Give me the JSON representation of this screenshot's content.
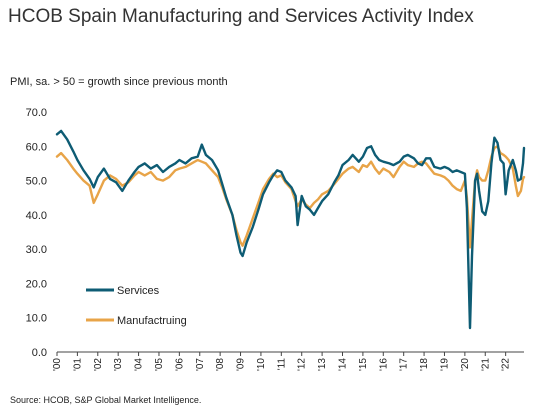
{
  "chart_data": {
    "type": "line",
    "title": "HCOB Spain Manufacturing and Services Activity Index",
    "subtitle": "PMI, sa. > 50 = growth since previous month",
    "source": "Source: HCOB, S&P Global Market Intelligence.",
    "ylim": [
      0,
      70
    ],
    "yticks": [
      "0.0",
      "10.0",
      "20.0",
      "30.0",
      "40.0",
      "50.0",
      "60.0",
      "70.0"
    ],
    "xlim": [
      2000,
      2022.9
    ],
    "xticks": [
      "'00",
      "'01",
      "'02",
      "'03",
      "'04",
      "'05",
      "'06",
      "'07",
      "'08",
      "'09",
      "'10",
      "'11",
      "'12",
      "'13",
      "'14",
      "'15",
      "'16",
      "'17",
      "'18",
      "'19",
      "'20",
      "'21",
      "'22"
    ],
    "legend_position": "bottom-left",
    "series": [
      {
        "name": "Services",
        "color": "#0e5c74",
        "points": [
          [
            2000.0,
            63.5
          ],
          [
            2000.2,
            64.5
          ],
          [
            2000.5,
            62.0
          ],
          [
            2000.8,
            58.5
          ],
          [
            2001.0,
            56.0
          ],
          [
            2001.3,
            53.0
          ],
          [
            2001.6,
            50.5
          ],
          [
            2001.8,
            48.0
          ],
          [
            2002.0,
            51.0
          ],
          [
            2002.3,
            53.5
          ],
          [
            2002.6,
            50.5
          ],
          [
            2002.9,
            49.5
          ],
          [
            2003.2,
            47.0
          ],
          [
            2003.5,
            50.0
          ],
          [
            2003.8,
            52.5
          ],
          [
            2004.0,
            54.0
          ],
          [
            2004.3,
            55.0
          ],
          [
            2004.6,
            53.5
          ],
          [
            2004.9,
            54.5
          ],
          [
            2005.2,
            52.5
          ],
          [
            2005.5,
            54.0
          ],
          [
            2005.8,
            55.0
          ],
          [
            2006.0,
            56.0
          ],
          [
            2006.3,
            55.0
          ],
          [
            2006.6,
            56.5
          ],
          [
            2006.9,
            57.0
          ],
          [
            2007.1,
            60.5
          ],
          [
            2007.3,
            57.5
          ],
          [
            2007.6,
            56.0
          ],
          [
            2007.9,
            53.0
          ],
          [
            2008.1,
            49.0
          ],
          [
            2008.3,
            45.0
          ],
          [
            2008.6,
            40.0
          ],
          [
            2008.8,
            34.0
          ],
          [
            2009.0,
            29.0
          ],
          [
            2009.1,
            28.0
          ],
          [
            2009.3,
            32.0
          ],
          [
            2009.6,
            36.5
          ],
          [
            2009.9,
            42.0
          ],
          [
            2010.1,
            46.0
          ],
          [
            2010.4,
            49.5
          ],
          [
            2010.6,
            51.5
          ],
          [
            2010.8,
            53.0
          ],
          [
            2011.0,
            52.5
          ],
          [
            2011.2,
            50.0
          ],
          [
            2011.5,
            48.0
          ],
          [
            2011.7,
            45.5
          ],
          [
            2011.8,
            37.0
          ],
          [
            2012.0,
            45.5
          ],
          [
            2012.2,
            42.5
          ],
          [
            2012.4,
            41.5
          ],
          [
            2012.6,
            40.0
          ],
          [
            2012.8,
            42.0
          ],
          [
            2013.0,
            44.0
          ],
          [
            2013.3,
            46.0
          ],
          [
            2013.6,
            49.5
          ],
          [
            2013.8,
            51.5
          ],
          [
            2014.0,
            54.5
          ],
          [
            2014.3,
            56.0
          ],
          [
            2014.5,
            57.5
          ],
          [
            2014.8,
            55.5
          ],
          [
            2015.0,
            57.0
          ],
          [
            2015.2,
            59.5
          ],
          [
            2015.4,
            60.0
          ],
          [
            2015.6,
            57.5
          ],
          [
            2015.8,
            56.0
          ],
          [
            2016.0,
            55.5
          ],
          [
            2016.3,
            55.0
          ],
          [
            2016.5,
            54.5
          ],
          [
            2016.8,
            55.5
          ],
          [
            2017.0,
            57.0
          ],
          [
            2017.2,
            57.5
          ],
          [
            2017.5,
            56.5
          ],
          [
            2017.7,
            55.0
          ],
          [
            2017.9,
            54.5
          ],
          [
            2018.1,
            56.5
          ],
          [
            2018.3,
            56.5
          ],
          [
            2018.5,
            54.0
          ],
          [
            2018.8,
            53.5
          ],
          [
            2019.0,
            54.0
          ],
          [
            2019.2,
            53.5
          ],
          [
            2019.4,
            52.5
          ],
          [
            2019.6,
            53.0
          ],
          [
            2019.8,
            52.5
          ],
          [
            2020.0,
            52.0
          ],
          [
            2020.1,
            42.0
          ],
          [
            2020.25,
            7.0
          ],
          [
            2020.35,
            28.0
          ],
          [
            2020.5,
            50.0
          ],
          [
            2020.6,
            52.0
          ],
          [
            2020.7,
            47.0
          ],
          [
            2020.85,
            41.0
          ],
          [
            2021.0,
            40.0
          ],
          [
            2021.15,
            44.0
          ],
          [
            2021.3,
            55.0
          ],
          [
            2021.45,
            62.5
          ],
          [
            2021.6,
            61.0
          ],
          [
            2021.75,
            56.0
          ],
          [
            2021.9,
            55.0
          ],
          [
            2022.0,
            46.0
          ],
          [
            2022.15,
            53.0
          ],
          [
            2022.35,
            56.0
          ],
          [
            2022.5,
            53.0
          ],
          [
            2022.6,
            50.0
          ],
          [
            2022.75,
            50.5
          ],
          [
            2022.85,
            55.0
          ],
          [
            2022.9,
            59.5
          ]
        ]
      },
      {
        "name": "Manufactruing",
        "color": "#e8a448",
        "points": [
          [
            2000.0,
            57.0
          ],
          [
            2000.2,
            58.0
          ],
          [
            2000.5,
            56.0
          ],
          [
            2000.8,
            53.5
          ],
          [
            2001.0,
            52.0
          ],
          [
            2001.3,
            50.0
          ],
          [
            2001.6,
            48.5
          ],
          [
            2001.8,
            43.5
          ],
          [
            2002.0,
            46.0
          ],
          [
            2002.3,
            50.0
          ],
          [
            2002.6,
            51.5
          ],
          [
            2002.9,
            50.5
          ],
          [
            2003.2,
            48.5
          ],
          [
            2003.5,
            49.5
          ],
          [
            2003.8,
            51.5
          ],
          [
            2004.0,
            52.5
          ],
          [
            2004.3,
            51.5
          ],
          [
            2004.6,
            52.5
          ],
          [
            2004.9,
            50.5
          ],
          [
            2005.2,
            50.0
          ],
          [
            2005.5,
            51.0
          ],
          [
            2005.8,
            53.0
          ],
          [
            2006.0,
            53.5
          ],
          [
            2006.3,
            54.0
          ],
          [
            2006.6,
            55.0
          ],
          [
            2006.9,
            56.0
          ],
          [
            2007.1,
            55.5
          ],
          [
            2007.3,
            55.0
          ],
          [
            2007.6,
            53.0
          ],
          [
            2007.9,
            51.0
          ],
          [
            2008.1,
            48.0
          ],
          [
            2008.3,
            44.5
          ],
          [
            2008.6,
            40.0
          ],
          [
            2008.8,
            35.5
          ],
          [
            2009.0,
            32.0
          ],
          [
            2009.1,
            31.0
          ],
          [
            2009.3,
            34.0
          ],
          [
            2009.6,
            39.0
          ],
          [
            2009.9,
            44.0
          ],
          [
            2010.1,
            47.5
          ],
          [
            2010.4,
            50.5
          ],
          [
            2010.6,
            52.0
          ],
          [
            2010.8,
            51.0
          ],
          [
            2011.0,
            51.5
          ],
          [
            2011.2,
            49.5
          ],
          [
            2011.5,
            47.5
          ],
          [
            2011.7,
            44.0
          ],
          [
            2011.8,
            42.5
          ],
          [
            2012.0,
            44.5
          ],
          [
            2012.2,
            43.0
          ],
          [
            2012.4,
            42.0
          ],
          [
            2012.6,
            43.5
          ],
          [
            2012.8,
            44.5
          ],
          [
            2013.0,
            46.0
          ],
          [
            2013.3,
            47.0
          ],
          [
            2013.6,
            49.0
          ],
          [
            2013.8,
            50.5
          ],
          [
            2014.0,
            52.0
          ],
          [
            2014.3,
            53.5
          ],
          [
            2014.5,
            54.0
          ],
          [
            2014.8,
            52.5
          ],
          [
            2015.0,
            54.5
          ],
          [
            2015.2,
            54.0
          ],
          [
            2015.4,
            55.5
          ],
          [
            2015.6,
            53.5
          ],
          [
            2015.8,
            52.0
          ],
          [
            2016.0,
            53.5
          ],
          [
            2016.3,
            52.5
          ],
          [
            2016.5,
            51.0
          ],
          [
            2016.8,
            54.0
          ],
          [
            2017.0,
            55.5
          ],
          [
            2017.2,
            54.5
          ],
          [
            2017.5,
            54.0
          ],
          [
            2017.7,
            55.0
          ],
          [
            2017.9,
            55.5
          ],
          [
            2018.1,
            55.0
          ],
          [
            2018.3,
            53.5
          ],
          [
            2018.5,
            52.0
          ],
          [
            2018.8,
            51.5
          ],
          [
            2019.0,
            51.0
          ],
          [
            2019.2,
            50.0
          ],
          [
            2019.4,
            48.5
          ],
          [
            2019.6,
            47.5
          ],
          [
            2019.8,
            47.0
          ],
          [
            2020.0,
            50.0
          ],
          [
            2020.1,
            45.0
          ],
          [
            2020.25,
            30.5
          ],
          [
            2020.35,
            38.5
          ],
          [
            2020.5,
            50.0
          ],
          [
            2020.6,
            53.0
          ],
          [
            2020.7,
            51.0
          ],
          [
            2020.85,
            50.0
          ],
          [
            2021.0,
            50.0
          ],
          [
            2021.15,
            53.0
          ],
          [
            2021.3,
            57.0
          ],
          [
            2021.45,
            59.5
          ],
          [
            2021.6,
            60.0
          ],
          [
            2021.75,
            58.0
          ],
          [
            2021.9,
            57.5
          ],
          [
            2022.0,
            57.0
          ],
          [
            2022.15,
            56.0
          ],
          [
            2022.35,
            53.5
          ],
          [
            2022.5,
            48.5
          ],
          [
            2022.6,
            45.5
          ],
          [
            2022.75,
            47.0
          ],
          [
            2022.85,
            50.5
          ],
          [
            2022.9,
            51.0
          ]
        ]
      }
    ]
  }
}
